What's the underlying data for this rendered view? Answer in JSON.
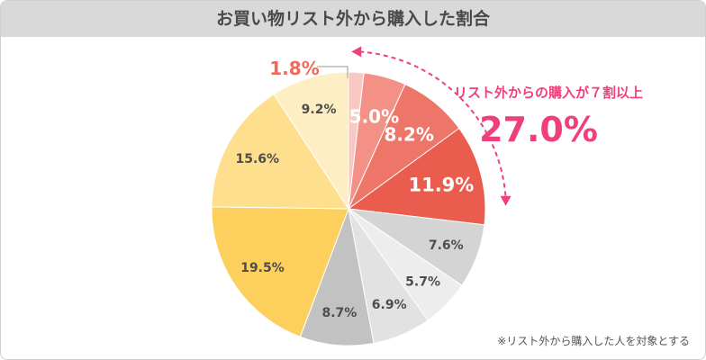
{
  "chart_data": {
    "type": "pie",
    "title": "お買い物リスト外から購入した割合",
    "slices": [
      {
        "label": "1.8%",
        "value": 1.8,
        "color": "#f8c9c3",
        "text_color": "#f06a5a",
        "label_size": 20
      },
      {
        "label": "5.0%",
        "value": 5.0,
        "color": "#f39186",
        "text_color": "#ffffff",
        "label_size": 20
      },
      {
        "label": "8.2%",
        "value": 8.2,
        "color": "#ee7669",
        "text_color": "#ffffff",
        "label_size": 20
      },
      {
        "label": "11.9%",
        "value": 11.9,
        "color": "#ea5d4e",
        "text_color": "#ffffff",
        "label_size": 21
      },
      {
        "label": "7.6%",
        "value": 7.6,
        "color": "#d4d4d4",
        "text_color": "#4d4d4d",
        "label_size": 14
      },
      {
        "label": "5.7%",
        "value": 5.7,
        "color": "#ededed",
        "text_color": "#4d4d4d",
        "label_size": 14
      },
      {
        "label": "6.9%",
        "value": 6.9,
        "color": "#e2e2e2",
        "text_color": "#4d4d4d",
        "label_size": 14
      },
      {
        "label": "8.7%",
        "value": 8.7,
        "color": "#c2c2c2",
        "text_color": "#4d4d4d",
        "label_size": 14
      },
      {
        "label": "19.5%",
        "value": 19.5,
        "color": "#fdd05d",
        "text_color": "#4d4d4d",
        "label_size": 14
      },
      {
        "label": "15.6%",
        "value": 15.6,
        "color": "#fedf8e",
        "text_color": "#4d4d4d",
        "label_size": 14
      },
      {
        "label": "9.2%",
        "value": 9.2,
        "color": "#feeec3",
        "text_color": "#4d4d4d",
        "label_size": 14
      }
    ],
    "annotation": {
      "text": "リスト外からの購入が７割以上",
      "value": "27.0%",
      "color": "#f0407a"
    },
    "footnote": "※リスト外から購入した人を対象とする"
  }
}
